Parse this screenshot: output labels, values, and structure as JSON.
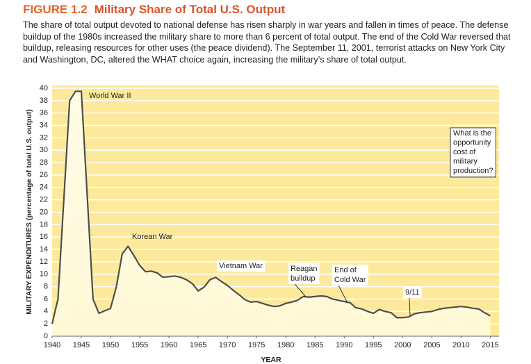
{
  "chart_data": {
    "type": "area",
    "figure": "FIGURE 1.2",
    "title": "Military Share of Total U.S. Output",
    "description": "The share of total output devoted to national defense has risen sharply in war years and fallen in times of peace. The defense buildup of the 1980s increased the military share to more than 6 percent of total output. The end of the Cold War reversed that buildup, releasing resources for other uses (the peace dividend). The September 11, 2001, terrorist attacks on New York City and Washington, DC, altered the WHAT choice again, increasing the military’s share of total output.",
    "xlabel": "YEAR",
    "ylabel": "MILITARY EXPENDITURES (percentage of total U.S. output)",
    "x": [
      1940,
      1941,
      1943,
      1944,
      1945,
      1947,
      1948,
      1950,
      1951,
      1952,
      1953,
      1954,
      1955,
      1956,
      1957,
      1958,
      1959,
      1960,
      1961,
      1962,
      1963,
      1964,
      1965,
      1966,
      1967,
      1968,
      1969,
      1970,
      1971,
      1972,
      1973,
      1974,
      1975,
      1976,
      1977,
      1978,
      1979,
      1980,
      1981,
      1982,
      1983,
      1984,
      1985,
      1986,
      1987,
      1988,
      1989,
      1990,
      1991,
      1992,
      1993,
      1994,
      1995,
      1996,
      1997,
      1998,
      1999,
      2000,
      2001,
      2002,
      2003,
      2004,
      2005,
      2006,
      2007,
      2008,
      2009,
      2010,
      2011,
      2012,
      2013,
      2014,
      2015
    ],
    "values": [
      2,
      6,
      38,
      39.5,
      39.5,
      6,
      3.7,
      4.5,
      8,
      13.3,
      14.5,
      13,
      11.4,
      10.4,
      10.5,
      10.2,
      9.5,
      9.6,
      9.7,
      9.5,
      9.1,
      8.5,
      7.3,
      7.9,
      9.1,
      9.5,
      8.8,
      8.2,
      7.4,
      6.7,
      5.9,
      5.5,
      5.6,
      5.3,
      5,
      4.8,
      4.9,
      5.3,
      5.5,
      5.8,
      6.4,
      6.3,
      6.4,
      6.5,
      6.4,
      6,
      5.8,
      5.6,
      5.4,
      4.6,
      4.4,
      4,
      3.7,
      4.3,
      4,
      3.8,
      3,
      3,
      3.1,
      3.6,
      3.8,
      3.9,
      4,
      4.3,
      4.5,
      4.6,
      4.7,
      4.8,
      4.7,
      4.5,
      4.4,
      3.8,
      3.3
    ],
    "line_color": "#4d4d4d",
    "background_color": "#fde99c",
    "grid": true,
    "xlim": [
      1940,
      2016.5
    ],
    "ylim": [
      0,
      40
    ],
    "xticks": [
      1940,
      1945,
      1950,
      1955,
      1960,
      1965,
      1970,
      1975,
      1980,
      1985,
      1990,
      1995,
      2000,
      2005,
      2010,
      2015
    ],
    "yticks": [
      0,
      2,
      4,
      6,
      8,
      10,
      12,
      14,
      16,
      18,
      20,
      22,
      24,
      26,
      28,
      30,
      32,
      34,
      36,
      38,
      40
    ],
    "annotations": [
      [
        "World War II"
      ],
      [
        "Korean War"
      ],
      [
        "Vietnam War"
      ],
      [
        "Reagan",
        "buildup"
      ],
      [
        "End of",
        "Cold War"
      ],
      [
        "9/11"
      ]
    ],
    "question": [
      "What is the",
      "opportunity",
      "cost of",
      "military",
      "production?"
    ]
  }
}
